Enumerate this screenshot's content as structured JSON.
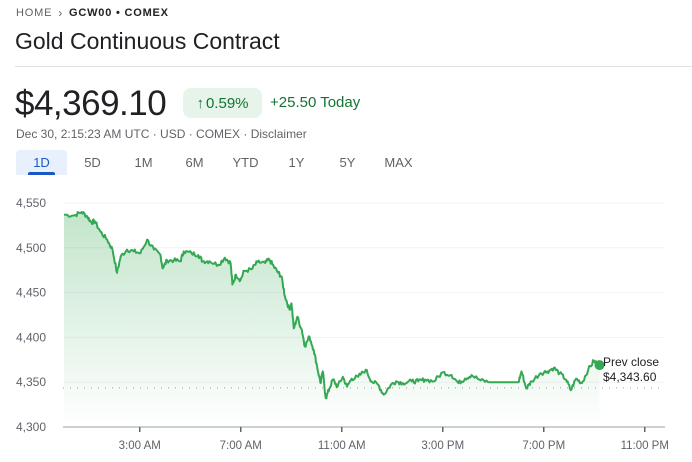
{
  "breadcrumb": {
    "home": "HOME",
    "symbol": "GCW00 • COMEX"
  },
  "title": "Gold Continuous Contract",
  "quote": {
    "price": "$4,369.10",
    "change_pct": "0.59%",
    "change_icon": "arrow-up-icon",
    "change_abs": "+25.50 Today",
    "meta": "Dec 30, 2:15:23 AM UTC · USD · COMEX · Disclaimer",
    "up_color": "#137333"
  },
  "tabs": [
    {
      "label": "1D",
      "active": true
    },
    {
      "label": "5D"
    },
    {
      "label": "1M"
    },
    {
      "label": "6M"
    },
    {
      "label": "YTD"
    },
    {
      "label": "1Y"
    },
    {
      "label": "5Y"
    },
    {
      "label": "MAX"
    }
  ],
  "chart_data": {
    "type": "area",
    "line_color": "#34a853",
    "y_ticks": [
      "4,550",
      "4,500",
      "4,450",
      "4,400",
      "4,350",
      "4,300"
    ],
    "y_tick_values": [
      4550,
      4500,
      4450,
      4400,
      4350,
      4300
    ],
    "ylim": [
      4300,
      4550
    ],
    "x_ticks": [
      "3:00 AM",
      "7:00 AM",
      "11:00 AM",
      "3:00 PM",
      "7:00 PM",
      "11:00 PM"
    ],
    "x_tick_hours": [
      3,
      7,
      11,
      15,
      19,
      23
    ],
    "xlim_hours": [
      0,
      23.2
    ],
    "grid": true,
    "prev_close": {
      "label": "Prev close",
      "value_label": "$4,343.60",
      "value": 4343.6
    },
    "series": [
      {
        "x_hours": [
          0,
          0.39,
          0.7,
          0.92,
          1.09,
          1.21,
          1.44,
          1.71,
          1.92,
          2.1,
          2.24,
          2.5,
          2.76,
          3.03,
          3.29,
          3.56,
          3.82,
          3.91,
          4.08,
          4.35,
          4.61,
          4.74,
          5.05,
          5.32,
          5.49,
          5.76,
          6.11,
          6.37,
          6.6,
          6.67,
          6.81,
          6.99,
          7.13,
          7.43,
          7.66,
          7.96,
          8.13,
          8.31,
          8.49,
          8.61,
          8.75,
          8.93,
          9.01,
          9.1,
          9.24,
          9.42,
          9.54,
          9.72,
          9.89,
          10.02,
          10.16,
          10.25,
          10.37,
          10.51,
          10.65,
          10.83,
          11.04,
          11.21,
          11.39,
          11.65,
          11.95,
          12.18,
          12.45,
          12.66,
          12.94,
          13.15,
          13.42,
          13.77,
          14.03,
          14.3,
          14.65,
          15.0,
          15.35,
          15.62,
          15.88,
          16.14,
          16.5,
          16.85,
          18.0,
          18.12,
          18.31,
          18.52,
          18.87,
          19.14,
          19.4,
          19.63,
          19.88,
          20.07,
          20.28,
          20.51,
          20.76,
          20.99,
          21.21
        ],
        "y": [
          4537,
          4536,
          4540,
          4535,
          4528,
          4530,
          4518,
          4509,
          4498,
          4472,
          4490,
          4498,
          4496,
          4494,
          4509,
          4498,
          4492,
          4477,
          4486,
          4486,
          4485,
          4496,
          4494,
          4492,
          4485,
          4485,
          4481,
          4489,
          4483,
          4459,
          4470,
          4464,
          4474,
          4476,
          4484,
          4483,
          4487,
          4479,
          4472,
          4468,
          4446,
          4431,
          4438,
          4410,
          4423,
          4408,
          4390,
          4401,
          4386,
          4368,
          4349,
          4362,
          4332,
          4343,
          4353,
          4345,
          4356,
          4345,
          4354,
          4356,
          4364,
          4351,
          4347,
          4336,
          4347,
          4351,
          4349,
          4351,
          4351,
          4353,
          4351,
          4361,
          4358,
          4349,
          4354,
          4358,
          4352,
          4350,
          4350,
          4362,
          4343,
          4351,
          4360,
          4362,
          4366,
          4360,
          4353,
          4341,
          4354,
          4349,
          4364,
          4374,
          4369.1
        ]
      }
    ]
  }
}
